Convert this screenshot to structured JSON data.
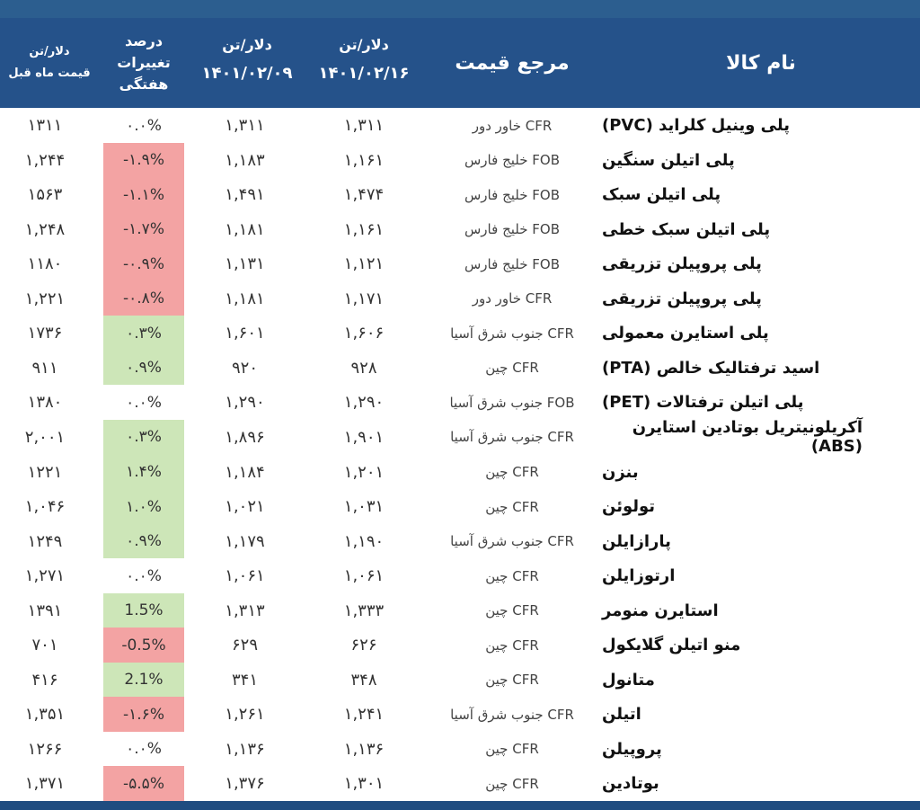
{
  "header": {
    "month_prev_unit": "دلار/تن",
    "month_prev_label": "قیمت ماه قبل",
    "change_label_1": "درصد",
    "change_label_2": "تغییرات",
    "change_label_3": "هفتگی",
    "prev_unit": "دلار/تن",
    "prev_date": "۱۴۰۱/۰۲/۰۹",
    "cur_unit": "دلار/تن",
    "cur_date": "۱۴۰۱/۰۲/۱۶",
    "ref_label": "مرجع قیمت",
    "name_label": "نام کالا"
  },
  "colors": {
    "header_bg": "#25528a",
    "negative": "#f3a3a3",
    "positive": "#cde6b8"
  },
  "rows": [
    {
      "name": "پلی وینیل کلراید (PVC)",
      "ref": "CFR  خاور دور",
      "cur": "۱,۳۱۱",
      "prev": "۱,۳۱۱",
      "chg": "۰.۰%",
      "trend": "zero",
      "month": "۱۳۱۱"
    },
    {
      "name": "پلی اتیلن سنگین",
      "ref": "FOB  خلیج فارس",
      "cur": "۱,۱۶۱",
      "prev": "۱,۱۸۳",
      "chg": "-۱.۹%",
      "trend": "neg",
      "month": "۱,۲۴۴"
    },
    {
      "name": "پلی اتیلن سبک",
      "ref": "FOB  خلیج فارس",
      "cur": "۱,۴۷۴",
      "prev": "۱,۴۹۱",
      "chg": "-۱.۱%",
      "trend": "neg",
      "month": "۱۵۶۳"
    },
    {
      "name": "پلی اتیلن سبک خطی",
      "ref": "FOB  خلیج فارس",
      "cur": "۱,۱۶۱",
      "prev": "۱,۱۸۱",
      "chg": "-۱.۷%",
      "trend": "neg",
      "month": "۱,۲۴۸"
    },
    {
      "name": "پلی پروپیلن تزریقی",
      "ref": "FOB  خلیج فارس",
      "cur": "۱,۱۲۱",
      "prev": "۱,۱۳۱",
      "chg": "-۰.۹%",
      "trend": "neg",
      "month": "۱۱۸۰"
    },
    {
      "name": "پلی پروپیلن تزریقی",
      "ref": "CFR  خاور دور",
      "cur": "۱,۱۷۱",
      "prev": "۱,۱۸۱",
      "chg": "-۰.۸%",
      "trend": "neg",
      "month": "۱,۲۲۱"
    },
    {
      "name": "پلی استایرن معمولی",
      "ref": "CFR جنوب شرق آسیا",
      "cur": "۱,۶۰۶",
      "prev": "۱,۶۰۱",
      "chg": "۰.۳%",
      "trend": "pos",
      "month": "۱۷۳۶"
    },
    {
      "name": "اسید ترفتالیک خالص (PTA)",
      "ref": "CFR  چین",
      "cur": "۹۲۸",
      "prev": "۹۲۰",
      "chg": "۰.۹%",
      "trend": "pos",
      "month": "۹۱۱"
    },
    {
      "name": "پلی اتیلن ترفتالات (PET)",
      "ref": "FOB جنوب شرق آسیا",
      "cur": "۱,۲۹۰",
      "prev": "۱,۲۹۰",
      "chg": "۰.۰%",
      "trend": "zero",
      "month": "۱۳۸۰"
    },
    {
      "name": "آکریلونیتریل بوتادین استایرن (ABS)",
      "ref": "CFR جنوب شرق آسیا",
      "cur": "۱,۹۰۱",
      "prev": "۱,۸۹۶",
      "chg": "۰.۳%",
      "trend": "pos",
      "month": "۲,۰۰۱"
    },
    {
      "name": "بنزن",
      "ref": "CFR  چین",
      "cur": "۱,۲۰۱",
      "prev": "۱,۱۸۴",
      "chg": "۱.۴%",
      "trend": "pos",
      "month": "۱۲۲۱"
    },
    {
      "name": "تولوئن",
      "ref": "CFR  چین",
      "cur": "۱,۰۳۱",
      "prev": "۱,۰۲۱",
      "chg": "۱.۰%",
      "trend": "pos",
      "month": "۱,۰۴۶"
    },
    {
      "name": "پارازایلن",
      "ref": "CFR جنوب شرق آسیا",
      "cur": "۱,۱۹۰",
      "prev": "۱,۱۷۹",
      "chg": "۰.۹%",
      "trend": "pos",
      "month": "۱۲۴۹"
    },
    {
      "name": "ارتوزایلن",
      "ref": "CFR  چین",
      "cur": "۱,۰۶۱",
      "prev": "۱,۰۶۱",
      "chg": "۰.۰%",
      "trend": "zero",
      "month": "۱,۲۷۱"
    },
    {
      "name": "استایرن منومر",
      "ref": "CFR  چین",
      "cur": "۱,۳۳۳",
      "prev": "۱,۳۱۳",
      "chg": "1.5%",
      "trend": "pos",
      "month": "۱۳۹۱"
    },
    {
      "name": "منو اتیلن گلایکول",
      "ref": "CFR  چین",
      "cur": "۶۲۶",
      "prev": "۶۲۹",
      "chg": "-0.5%",
      "trend": "neg",
      "month": "۷۰۱"
    },
    {
      "name": "متانول",
      "ref": "CFR  چین",
      "cur": "۳۴۸",
      "prev": "۳۴۱",
      "chg": "2.1%",
      "trend": "pos",
      "month": "۴۱۶"
    },
    {
      "name": "اتیلن",
      "ref": "CFR جنوب شرق آسیا",
      "cur": "۱,۲۴۱",
      "prev": "۱,۲۶۱",
      "chg": "-۱.۶%",
      "trend": "neg",
      "month": "۱,۳۵۱"
    },
    {
      "name": "پروپیلن",
      "ref": "CFR  چین",
      "cur": "۱,۱۳۶",
      "prev": "۱,۱۳۶",
      "chg": "۰.۰%",
      "trend": "zero",
      "month": "۱۲۶۶"
    },
    {
      "name": "بوتادین",
      "ref": "CFR  چین",
      "cur": "۱,۳۰۱",
      "prev": "۱,۳۷۶",
      "chg": "-۵.۵%",
      "trend": "neg",
      "month": "۱,۳۷۱"
    }
  ]
}
